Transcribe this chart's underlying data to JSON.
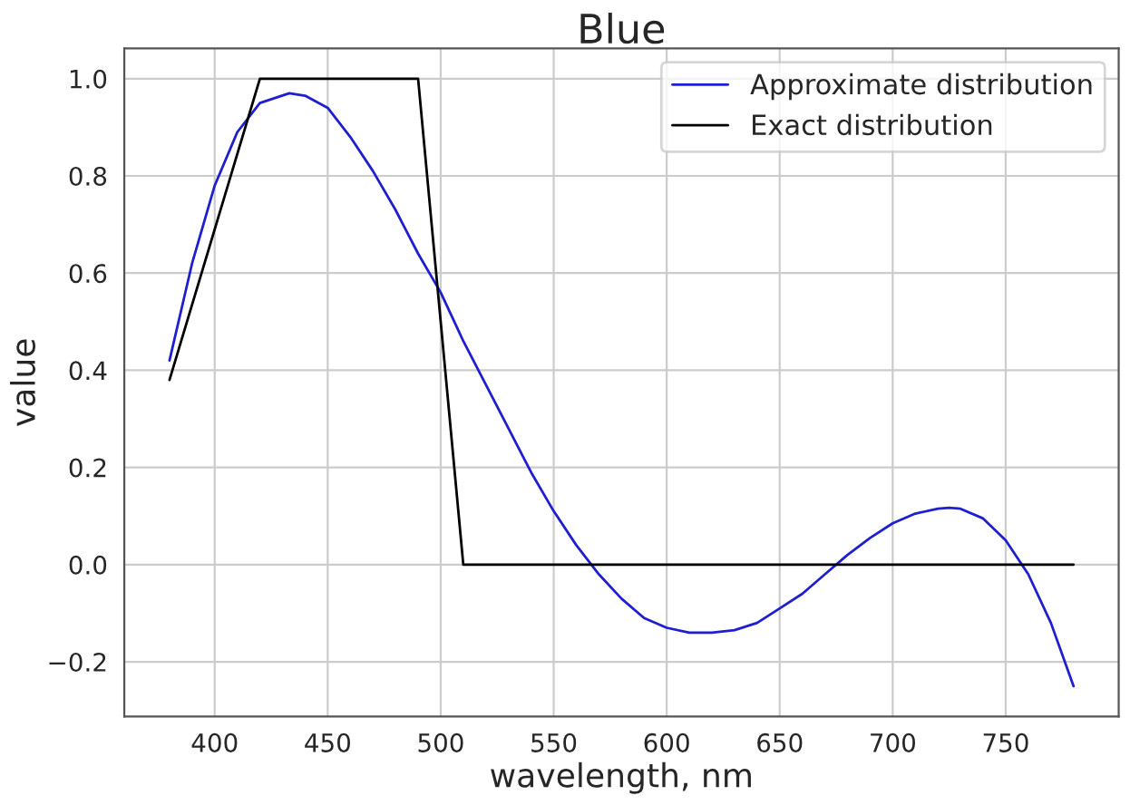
{
  "chart_data": {
    "type": "line",
    "title": "Blue",
    "xlabel": "wavelength, nm",
    "ylabel": "value",
    "xlim": [
      360,
      800
    ],
    "ylim": [
      -0.3125,
      1.0625
    ],
    "xticks": [
      400,
      450,
      500,
      550,
      600,
      650,
      700,
      750
    ],
    "yticks": [
      {
        "value": -0.2,
        "label": "−0.2"
      },
      {
        "value": 0.0,
        "label": "0.0"
      },
      {
        "value": 0.2,
        "label": "0.2"
      },
      {
        "value": 0.4,
        "label": "0.4"
      },
      {
        "value": 0.6,
        "label": "0.6"
      },
      {
        "value": 0.8,
        "label": "0.8"
      },
      {
        "value": 1.0,
        "label": "1.0"
      }
    ],
    "grid": true,
    "legend": "top right",
    "marker": "none",
    "line_style": "solid",
    "series": [
      {
        "name": "Approximate distribution",
        "color": "#1f1fd0",
        "x": [
          380,
          390,
          400,
          410,
          420,
          433,
          440,
          450,
          460,
          470,
          480,
          490,
          500,
          510,
          520,
          530,
          540,
          550,
          560,
          570,
          580,
          590,
          600,
          610,
          620,
          630,
          640,
          650,
          660,
          670,
          680,
          690,
          700,
          710,
          720,
          725,
          730,
          740,
          750,
          760,
          770,
          780
        ],
        "values": [
          0.42,
          0.62,
          0.78,
          0.89,
          0.95,
          0.97,
          0.965,
          0.94,
          0.88,
          0.81,
          0.73,
          0.64,
          0.56,
          0.46,
          0.37,
          0.28,
          0.19,
          0.11,
          0.04,
          -0.02,
          -0.07,
          -0.11,
          -0.13,
          -0.14,
          -0.14,
          -0.135,
          -0.12,
          -0.09,
          -0.06,
          -0.02,
          0.02,
          0.055,
          0.085,
          0.105,
          0.115,
          0.117,
          0.115,
          0.095,
          0.05,
          -0.02,
          -0.12,
          -0.25
        ]
      },
      {
        "name": "Exact distribution",
        "color": "#000000",
        "x": [
          380,
          420,
          490,
          510,
          780
        ],
        "values": [
          0.38,
          1.0,
          1.0,
          0.0,
          0.0
        ]
      }
    ]
  }
}
